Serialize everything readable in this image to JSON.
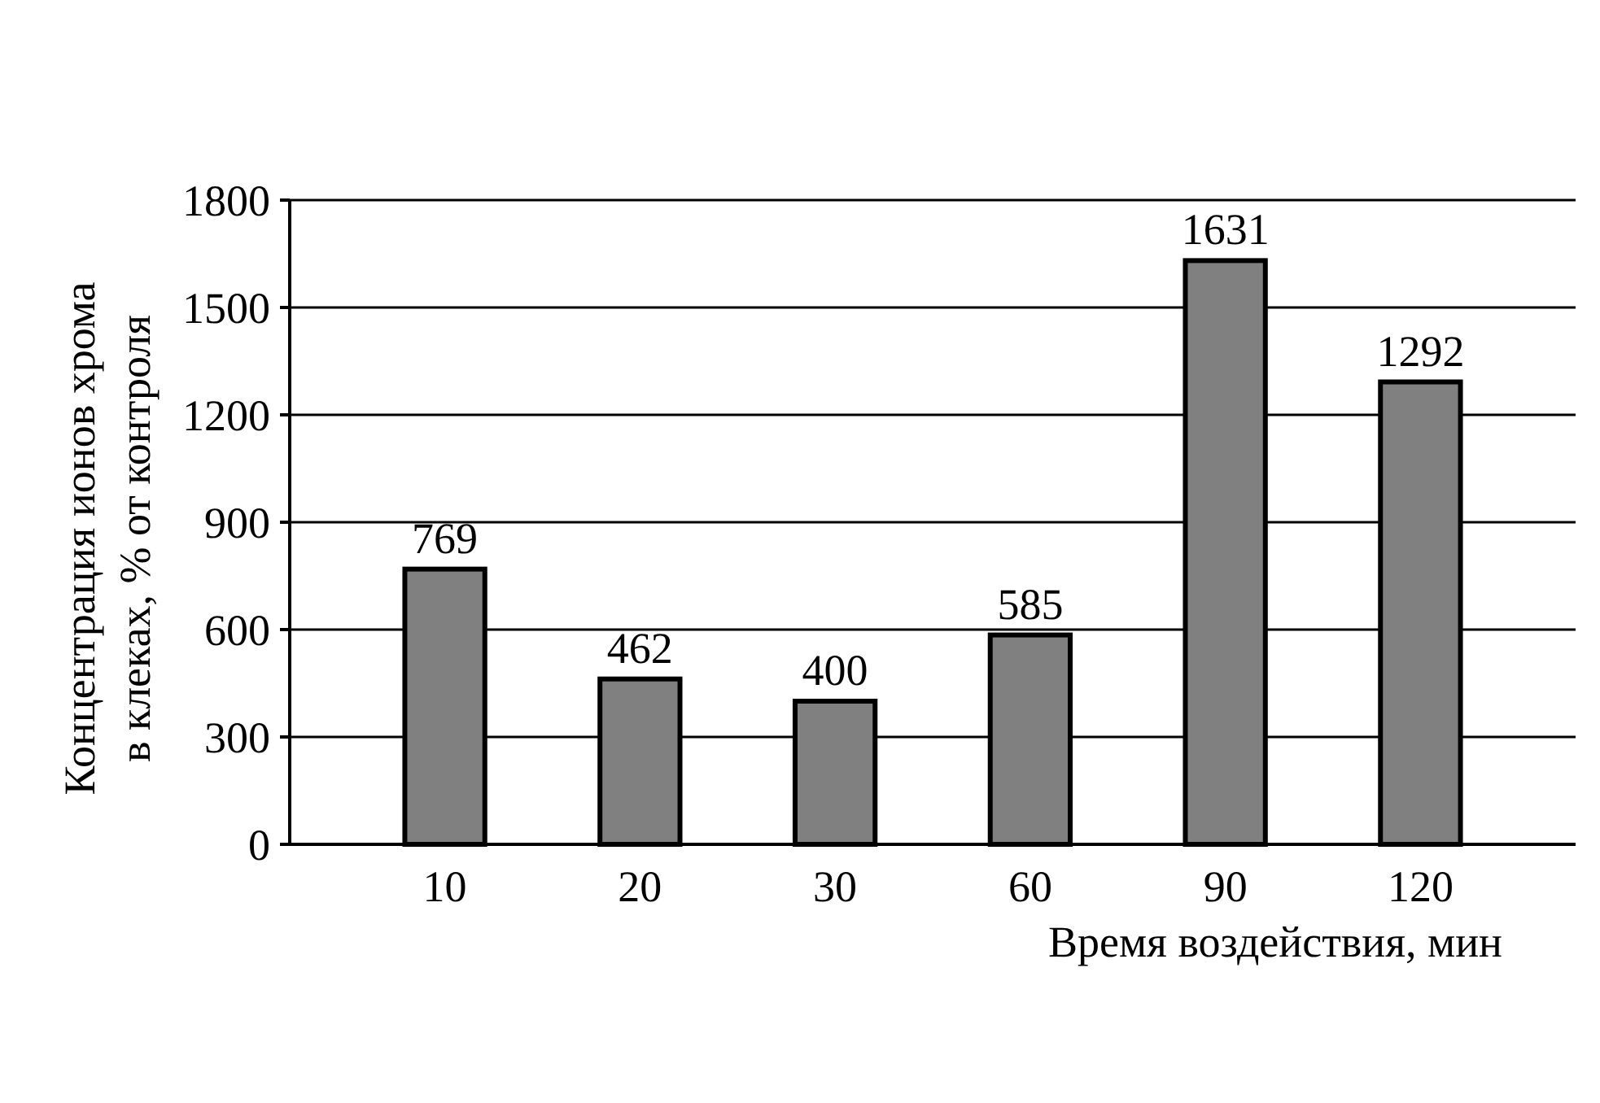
{
  "chart_data": {
    "type": "bar",
    "xlabel": "Время воздействия, мин",
    "ylabel": "Концентрация ионов хрома\nв клеках, % от контроля",
    "categories": [
      "10",
      "20",
      "30",
      "60",
      "90",
      "120"
    ],
    "values": [
      769,
      462,
      400,
      585,
      1631,
      1292
    ],
    "color": "#808080",
    "ylim": [
      0,
      1800
    ],
    "yticks": [
      0,
      300,
      600,
      900,
      1200,
      1500,
      1800
    ],
    "grid": "y",
    "data_labels": true
  }
}
